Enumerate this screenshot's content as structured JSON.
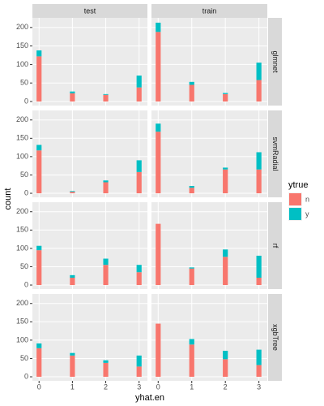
{
  "chart_data": {
    "type": "bar",
    "stacked": true,
    "xlabel": "yhat.en",
    "ylabel": "count",
    "legend_title": "ytrue",
    "columns": [
      "test",
      "train"
    ],
    "rows": [
      "glmnet",
      "svmRadial",
      "rf",
      "xgbTree"
    ],
    "x": [
      0,
      1,
      2,
      3
    ],
    "xlim": [
      -0.2,
      3.25
    ],
    "xticks": [
      0,
      1,
      2,
      3
    ],
    "ylim": [
      -11,
      226
    ],
    "yticks": [
      0,
      50,
      100,
      150,
      200
    ],
    "grid": true,
    "series": [
      {
        "name": "n",
        "color": "#F8766D"
      },
      {
        "name": "y",
        "color": "#00BFC4"
      }
    ],
    "panels": [
      [
        [
          [
            122,
            22,
            18,
            38
          ],
          [
            16,
            5,
            2,
            32
          ]
        ],
        [
          [
            188,
            45,
            20,
            58
          ],
          [
            25,
            8,
            3,
            47
          ]
        ]
      ],
      [
        [
          [
            117,
            4,
            30,
            58
          ],
          [
            15,
            2,
            5,
            32
          ]
        ],
        [
          [
            168,
            15,
            65,
            65
          ],
          [
            22,
            5,
            5,
            47
          ]
        ]
      ],
      [
        [
          [
            95,
            20,
            55,
            35
          ],
          [
            12,
            7,
            17,
            20
          ]
        ],
        [
          [
            167,
            45,
            77,
            20
          ],
          [
            0,
            3,
            20,
            60
          ]
        ]
      ],
      [
        [
          [
            78,
            58,
            38,
            28
          ],
          [
            13,
            7,
            7,
            30
          ]
        ],
        [
          [
            145,
            88,
            48,
            32
          ],
          [
            0,
            15,
            23,
            42
          ]
        ]
      ]
    ]
  }
}
